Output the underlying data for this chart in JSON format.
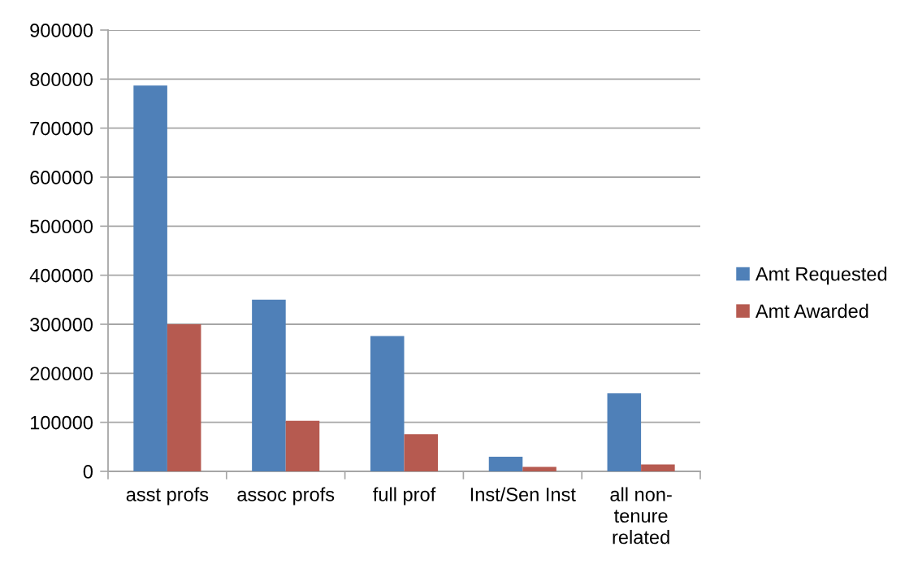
{
  "chart_data": {
    "type": "bar",
    "categories": [
      "asst profs",
      "assoc profs",
      "full prof",
      "Inst/Sen Inst",
      "all non-\ntenure\nrelated"
    ],
    "series": [
      {
        "name": "Amt Requested",
        "color": "#4f80b8",
        "values": [
          787000,
          350000,
          276000,
          30000,
          159000
        ]
      },
      {
        "name": "Amt Awarded",
        "color": "#b65a50",
        "values": [
          300000,
          103000,
          76000,
          9000,
          14000
        ]
      }
    ],
    "ylim": [
      0,
      900000
    ],
    "yticks": [
      0,
      100000,
      200000,
      300000,
      400000,
      500000,
      600000,
      700000,
      800000,
      900000
    ],
    "grid": "y",
    "legend": "right"
  }
}
